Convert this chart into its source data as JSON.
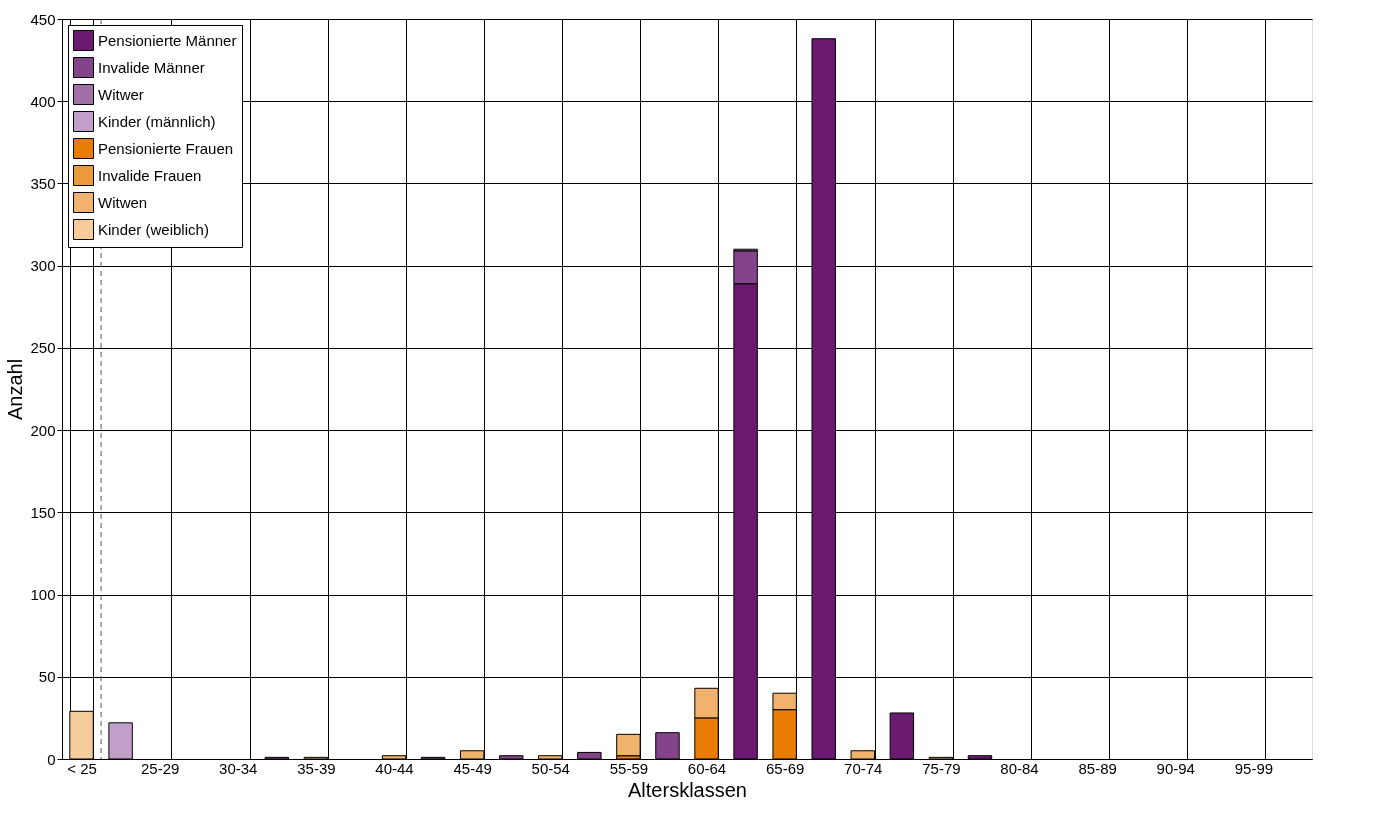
{
  "chart_data": {
    "type": "bar",
    "stacked": true,
    "xlabel": "Altersklassen",
    "ylabel": "Anzahl",
    "categories": [
      "< 25",
      null,
      "25-29",
      null,
      "30-34",
      null,
      "35-39",
      null,
      "40-44",
      null,
      "45-49",
      null,
      "50-54",
      null,
      "55-59",
      null,
      "60-64",
      null,
      "65-69",
      null,
      "70-74",
      null,
      "75-79",
      null,
      "80-84",
      null,
      "85-89",
      null,
      "90-94",
      null,
      "95-99",
      null
    ],
    "series": [
      {
        "name": "Pensionierte Männer",
        "color": "#6b1a70",
        "values": [
          null,
          null,
          null,
          null,
          null,
          null,
          null,
          null,
          null,
          null,
          null,
          null,
          null,
          null,
          null,
          null,
          null,
          289,
          null,
          438,
          null,
          28,
          null,
          2,
          null,
          null,
          null,
          null,
          null,
          null,
          null,
          null
        ]
      },
      {
        "name": "Invalide Männer",
        "color": "#84448a",
        "values": [
          null,
          null,
          null,
          null,
          null,
          1,
          null,
          null,
          null,
          1,
          null,
          2,
          null,
          4,
          null,
          16,
          null,
          20,
          null,
          null,
          null,
          null,
          null,
          null,
          null,
          null,
          null,
          null,
          null,
          null,
          null,
          null
        ]
      },
      {
        "name": "Witwer",
        "color": "#a070a6",
        "values": [
          null,
          null,
          null,
          null,
          null,
          null,
          null,
          null,
          null,
          null,
          null,
          null,
          null,
          null,
          null,
          null,
          null,
          1,
          null,
          null,
          null,
          null,
          null,
          null,
          null,
          null,
          null,
          null,
          null,
          null,
          null,
          null
        ]
      },
      {
        "name": "Kinder (männlich)",
        "color": "#c0a0c8",
        "values": [
          null,
          22,
          null,
          null,
          null,
          null,
          null,
          null,
          null,
          null,
          null,
          null,
          null,
          null,
          null,
          null,
          null,
          null,
          null,
          null,
          null,
          null,
          null,
          null,
          null,
          null,
          null,
          null,
          null,
          null,
          null,
          null
        ]
      },
      {
        "name": "Pensionierte Frauen",
        "color": "#e87c05",
        "values": [
          null,
          null,
          null,
          null,
          null,
          null,
          null,
          null,
          null,
          null,
          null,
          null,
          null,
          null,
          2,
          null,
          25,
          null,
          30,
          null,
          null,
          null,
          null,
          null,
          null,
          null,
          null,
          null,
          null,
          null,
          null,
          null
        ]
      },
      {
        "name": "Invalide Frauen",
        "color": "#ec9a3c",
        "values": [
          null,
          null,
          null,
          null,
          null,
          null,
          null,
          null,
          null,
          null,
          null,
          null,
          null,
          null,
          null,
          null,
          null,
          null,
          null,
          null,
          null,
          null,
          null,
          null,
          null,
          null,
          null,
          null,
          null,
          null,
          null,
          null
        ]
      },
      {
        "name": "Witwen",
        "color": "#f0b26c",
        "values": [
          null,
          null,
          null,
          null,
          null,
          null,
          1,
          null,
          2,
          null,
          5,
          null,
          2,
          null,
          13,
          null,
          18,
          null,
          10,
          null,
          5,
          null,
          1,
          null,
          null,
          null,
          null,
          null,
          null,
          null,
          null,
          null
        ]
      },
      {
        "name": "Kinder (weiblich)",
        "color": "#f6cc9c",
        "values": [
          29,
          null,
          null,
          null,
          null,
          null,
          null,
          null,
          null,
          null,
          null,
          null,
          null,
          null,
          null,
          null,
          null,
          null,
          null,
          null,
          null,
          null,
          null,
          null,
          null,
          null,
          null,
          null,
          null,
          null,
          null,
          null
        ]
      }
    ],
    "ylim": [
      0,
      450
    ],
    "yticks": [
      0,
      50,
      100,
      150,
      200,
      250,
      300,
      350,
      400,
      450
    ],
    "grid": true,
    "legend": "top left",
    "ref_lines": [
      {
        "axis": "x",
        "value": "< 25",
        "line_style": "dashed",
        "color": "#555555"
      }
    ]
  }
}
